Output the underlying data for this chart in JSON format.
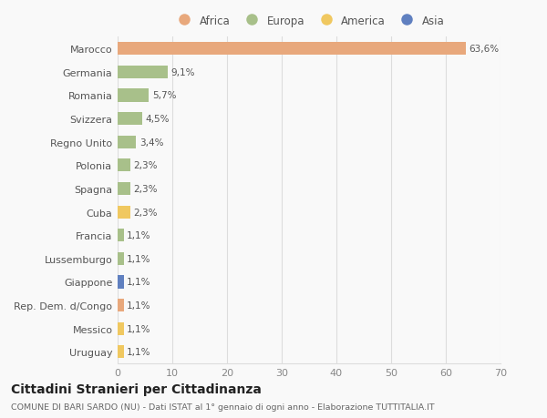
{
  "categories": [
    "Marocco",
    "Germania",
    "Romania",
    "Svizzera",
    "Regno Unito",
    "Polonia",
    "Spagna",
    "Cuba",
    "Francia",
    "Lussemburgo",
    "Giappone",
    "Rep. Dem. d/Congo",
    "Messico",
    "Uruguay"
  ],
  "values": [
    63.6,
    9.1,
    5.7,
    4.5,
    3.4,
    2.3,
    2.3,
    2.3,
    1.1,
    1.1,
    1.1,
    1.1,
    1.1,
    1.1
  ],
  "labels": [
    "63,6%",
    "9,1%",
    "5,7%",
    "4,5%",
    "3,4%",
    "2,3%",
    "2,3%",
    "2,3%",
    "1,1%",
    "1,1%",
    "1,1%",
    "1,1%",
    "1,1%",
    "1,1%"
  ],
  "continents": [
    "Africa",
    "Europa",
    "Europa",
    "Europa",
    "Europa",
    "Europa",
    "Europa",
    "America",
    "Europa",
    "Europa",
    "Asia",
    "Africa",
    "America",
    "America"
  ],
  "continent_colors": {
    "Africa": "#E8A87C",
    "Europa": "#A8C08A",
    "America": "#F0C860",
    "Asia": "#6080C0"
  },
  "legend_items": [
    "Africa",
    "Europa",
    "America",
    "Asia"
  ],
  "title": "Cittadini Stranieri per Cittadinanza",
  "subtitle": "COMUNE DI BARI SARDO (NU) - Dati ISTAT al 1° gennaio di ogni anno - Elaborazione TUTTITALIA.IT",
  "xlim": [
    0,
    70
  ],
  "xticks": [
    0,
    10,
    20,
    30,
    40,
    50,
    60,
    70
  ],
  "background_color": "#f9f9f9",
  "grid_color": "#dddddd"
}
